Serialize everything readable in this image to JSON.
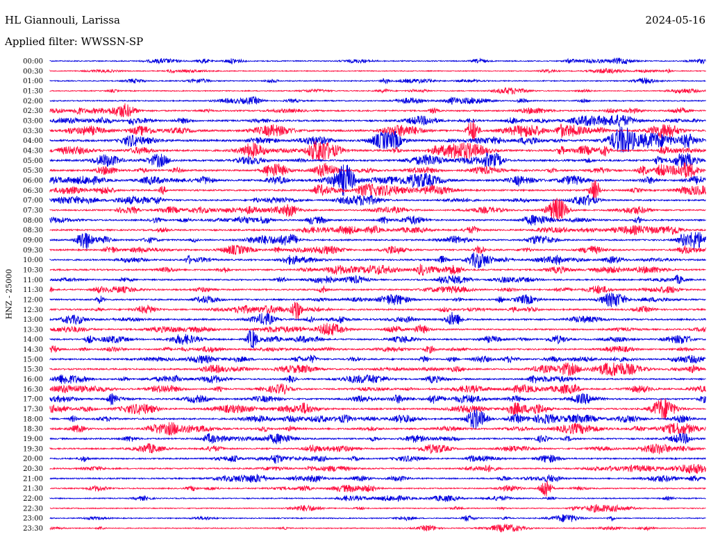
{
  "header": {
    "station": "HL Giannouli, Larissa",
    "date": "2024-05-16",
    "filter": "Applied filter: WWSSN-SP"
  },
  "channel_label": "HNZ - 25000",
  "colors": {
    "trace_a": "#0000e0",
    "trace_b": "#ff1040"
  },
  "chart_data": {
    "type": "line",
    "subtype": "helicorder",
    "row_labels": [
      "00:00",
      "00:30",
      "01:00",
      "01:30",
      "02:00",
      "02:30",
      "03:00",
      "03:30",
      "04:00",
      "04:30",
      "05:00",
      "05:30",
      "06:00",
      "06:30",
      "07:00",
      "07:30",
      "08:00",
      "08:30",
      "09:00",
      "09:30",
      "10:00",
      "10:30",
      "11:00",
      "11:30",
      "12:00",
      "12:30",
      "13:00",
      "13:30",
      "14:00",
      "14:30",
      "15:00",
      "15:30",
      "16:00",
      "16:30",
      "17:00",
      "17:30",
      "18:00",
      "18:30",
      "19:00",
      "19:30",
      "20:00",
      "20:30",
      "21:00",
      "21:30",
      "22:00",
      "22:30",
      "23:00",
      "23:30"
    ],
    "row_colors": [
      "trace_a",
      "trace_b"
    ],
    "activity_level": [
      0.35,
      0.25,
      0.3,
      0.3,
      0.4,
      0.6,
      0.8,
      0.95,
      1.0,
      0.95,
      0.9,
      0.85,
      0.85,
      0.75,
      0.6,
      0.6,
      0.7,
      0.7,
      0.65,
      0.7,
      0.7,
      0.7,
      0.65,
      0.6,
      0.7,
      0.7,
      0.75,
      0.7,
      0.65,
      0.65,
      0.7,
      0.7,
      0.65,
      0.7,
      0.7,
      0.7,
      0.75,
      0.8,
      0.65,
      0.6,
      0.6,
      0.55,
      0.55,
      0.45,
      0.35,
      0.3,
      0.3,
      0.3
    ]
  }
}
